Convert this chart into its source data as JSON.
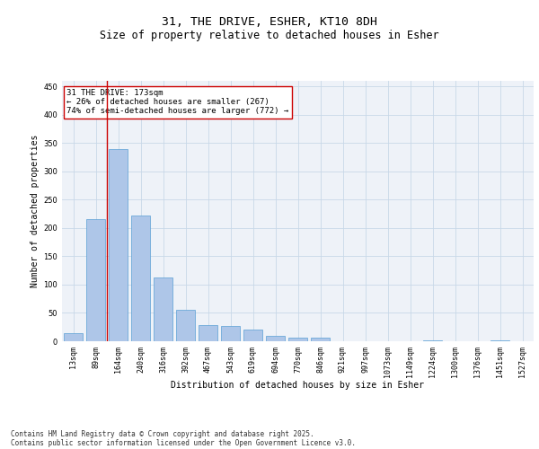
{
  "title_line1": "31, THE DRIVE, ESHER, KT10 8DH",
  "title_line2": "Size of property relative to detached houses in Esher",
  "xlabel": "Distribution of detached houses by size in Esher",
  "ylabel": "Number of detached properties",
  "categories": [
    "13sqm",
    "89sqm",
    "164sqm",
    "240sqm",
    "316sqm",
    "392sqm",
    "467sqm",
    "543sqm",
    "619sqm",
    "694sqm",
    "770sqm",
    "846sqm",
    "921sqm",
    "997sqm",
    "1073sqm",
    "1149sqm",
    "1224sqm",
    "1300sqm",
    "1376sqm",
    "1451sqm",
    "1527sqm"
  ],
  "values": [
    15,
    215,
    340,
    222,
    113,
    55,
    29,
    27,
    20,
    10,
    7,
    7,
    0,
    0,
    0,
    0,
    2,
    0,
    0,
    2,
    0
  ],
  "bar_color": "#aec6e8",
  "bar_edge_color": "#5a9fd4",
  "grid_color": "#c8d8e8",
  "background_color": "#eef2f8",
  "vline_x": 1.5,
  "vline_color": "#cc0000",
  "annotation_text": "31 THE DRIVE: 173sqm\n← 26% of detached houses are smaller (267)\n74% of semi-detached houses are larger (772) →",
  "annotation_box_color": "#cc0000",
  "ylim": [
    0,
    460
  ],
  "yticks": [
    0,
    50,
    100,
    150,
    200,
    250,
    300,
    350,
    400,
    450
  ],
  "footer_line1": "Contains HM Land Registry data © Crown copyright and database right 2025.",
  "footer_line2": "Contains public sector information licensed under the Open Government Licence v3.0.",
  "title_fontsize": 9.5,
  "subtitle_fontsize": 8.5,
  "axis_label_fontsize": 7,
  "tick_fontsize": 6,
  "footer_fontsize": 5.5
}
